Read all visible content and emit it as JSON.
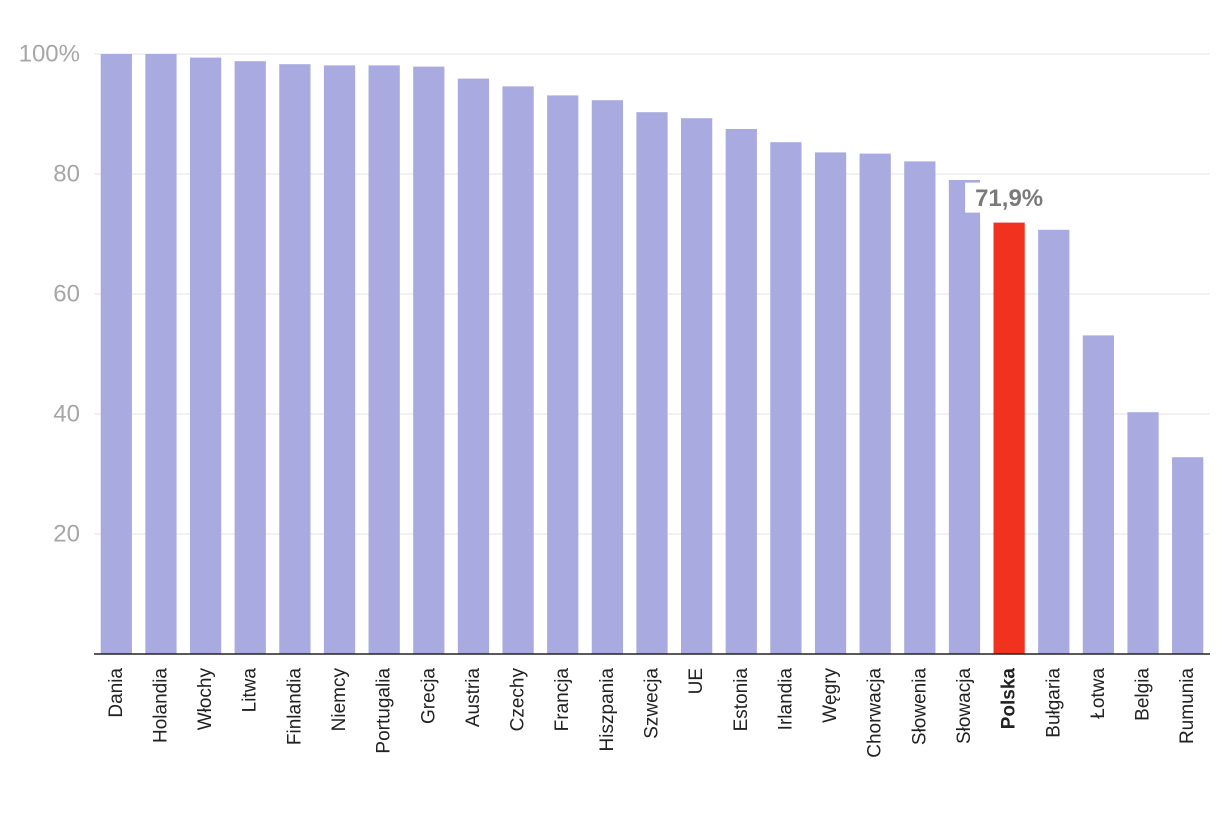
{
  "chart_data": {
    "type": "bar",
    "categories": [
      "Dania",
      "Holandia",
      "Włochy",
      "Litwa",
      "Finlandia",
      "Niemcy",
      "Portugalia",
      "Grecja",
      "Austria",
      "Czechy",
      "Francja",
      "Hiszpania",
      "Szwecja",
      "UE",
      "Estonia",
      "Irlandia",
      "Węgry",
      "Chorwacja",
      "Słowenia",
      "Słowacja",
      "Polska",
      "Bułgaria",
      "Łotwa",
      "Belgia",
      "Rumunia"
    ],
    "values": [
      100,
      100,
      99.4,
      98.8,
      98.3,
      98.1,
      98.1,
      97.9,
      95.9,
      94.6,
      93.1,
      92.3,
      90.3,
      89.3,
      87.5,
      85.3,
      83.6,
      83.4,
      82.1,
      79.0,
      71.9,
      70.7,
      53.1,
      40.3,
      32.8
    ],
    "highlight": {
      "category": "Polska",
      "label": "71,9%",
      "color": "#f0321e"
    },
    "bar_color": "#a8aae0",
    "ylim": [
      0,
      100
    ],
    "yticks": [
      20,
      40,
      60,
      80,
      100
    ],
    "ytick_labels": [
      "20",
      "40",
      "60",
      "80",
      "100%"
    ],
    "grid": true,
    "title": "",
    "xlabel": "",
    "ylabel": ""
  }
}
